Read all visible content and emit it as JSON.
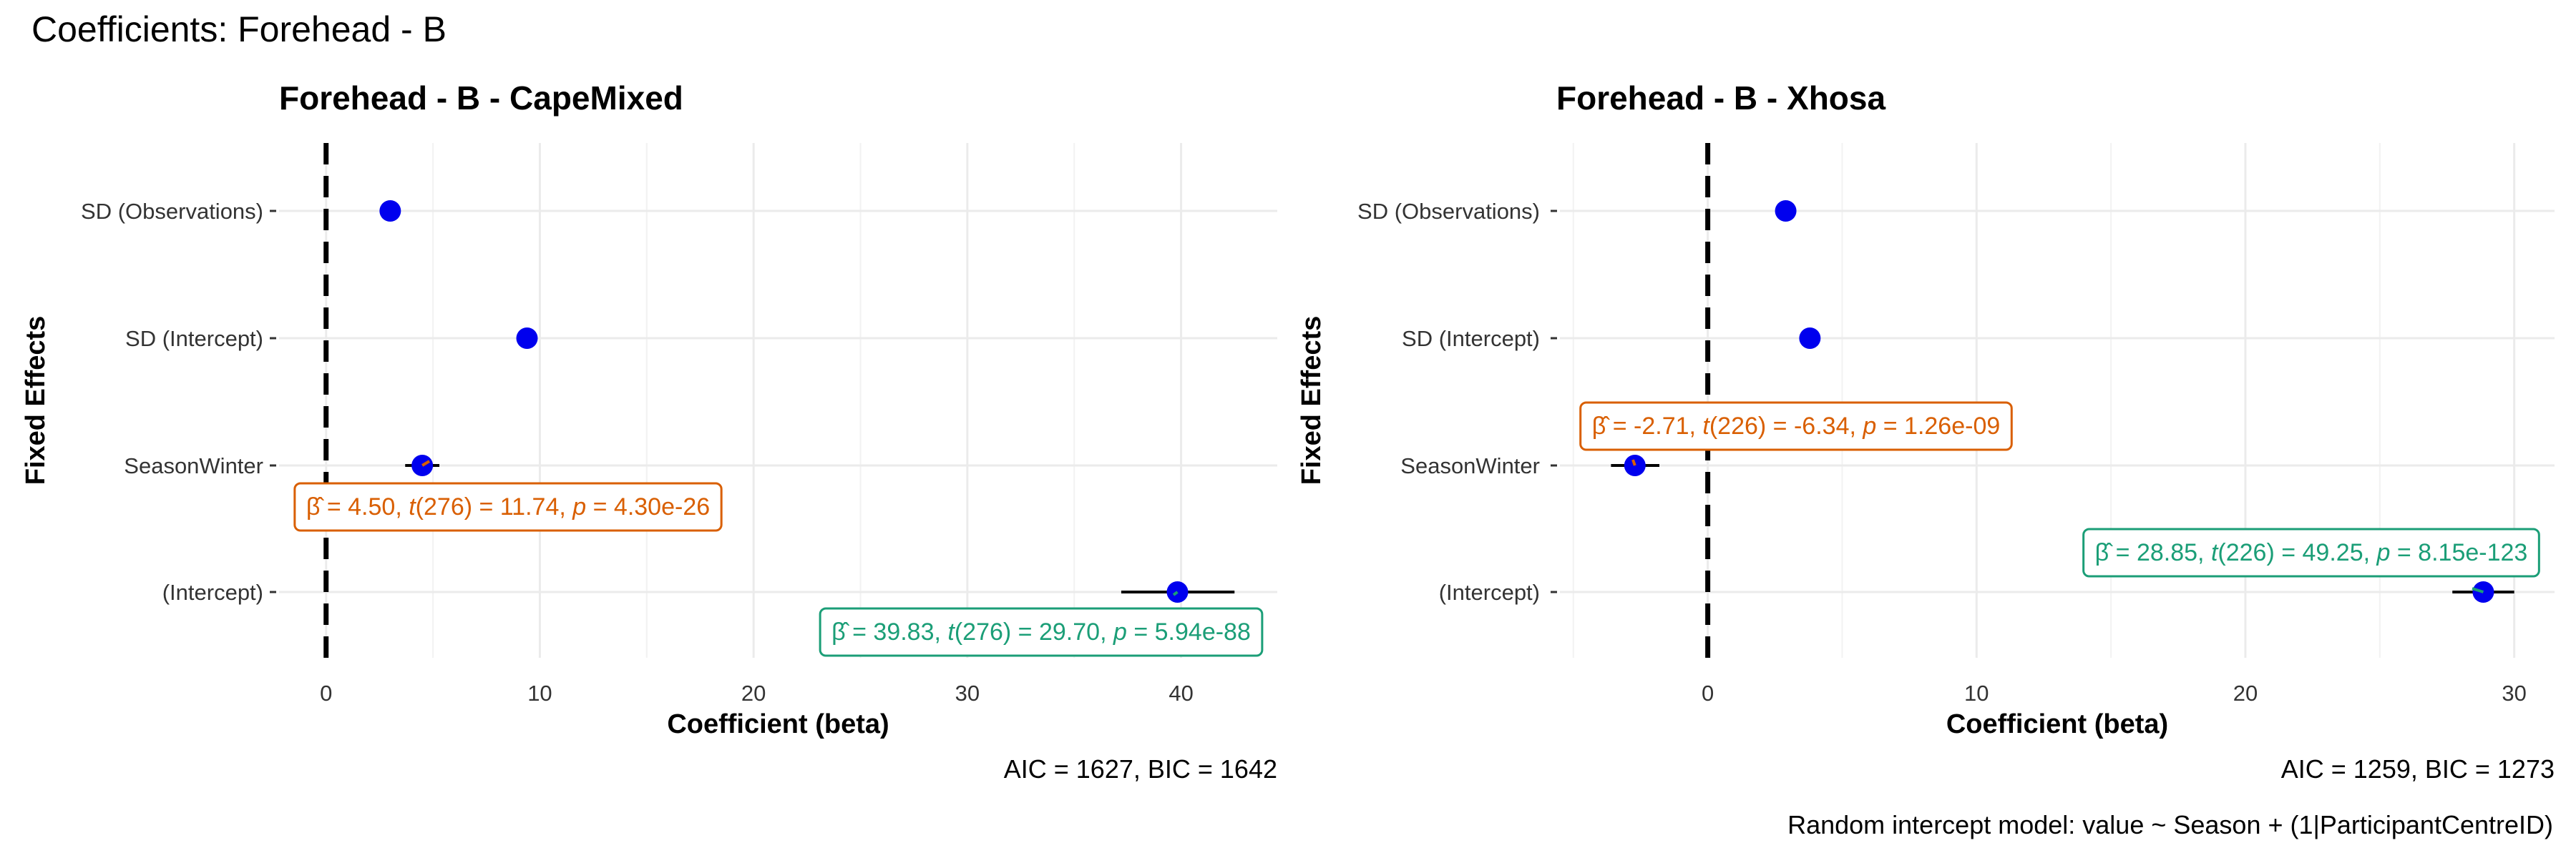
{
  "page": {
    "title": "Coefficients: Forehead - B",
    "caption": "Random intercept model: value ~ Season + (1|ParticipantCentreID)"
  },
  "chart_data": [
    {
      "type": "scatter",
      "title": "Forehead - B - CapeMixed",
      "xlabel": "Coefficient (beta)",
      "ylabel": "Fixed Effects",
      "xlim": [
        -2.2,
        44.5
      ],
      "xticks": [
        0,
        10,
        20,
        30,
        40
      ],
      "categories": [
        "SD (Observations)",
        "SD (Intercept)",
        "SeasonWinter",
        "(Intercept)"
      ],
      "estimates": [
        3.0,
        9.4,
        4.5,
        39.83
      ],
      "ci_low": [
        null,
        null,
        3.7,
        37.2
      ],
      "ci_high": [
        null,
        null,
        5.3,
        42.5
      ],
      "reference_line": 0,
      "grid": true,
      "stats": "AIC = 1627, BIC = 1642",
      "annotations": [
        {
          "category": "SeasonWinter",
          "beta": "4.50",
          "df": "276",
          "t": "11.74",
          "p": "4.30e-26",
          "color": "#d95f02"
        },
        {
          "category": "(Intercept)",
          "beta": "39.83",
          "df": "276",
          "t": "29.70",
          "p": "5.94e-88",
          "color": "#1b9e77"
        }
      ],
      "point_color": "#0000ee"
    },
    {
      "type": "scatter",
      "title": "Forehead - B - Xhosa",
      "xlabel": "Coefficient (beta)",
      "ylabel": "Fixed Effects",
      "xlim": [
        -5.5,
        31.5
      ],
      "xticks": [
        0,
        10,
        20,
        30
      ],
      "categories": [
        "SD (Observations)",
        "SD (Intercept)",
        "SeasonWinter",
        "(Intercept)"
      ],
      "estimates": [
        2.9,
        3.8,
        -2.71,
        28.85
      ],
      "ci_low": [
        null,
        null,
        -3.6,
        27.7
      ],
      "ci_high": [
        null,
        null,
        -1.8,
        30.0
      ],
      "reference_line": 0,
      "grid": true,
      "stats": "AIC = 1259, BIC = 1273",
      "annotations": [
        {
          "category": "SeasonWinter",
          "beta": "-2.71",
          "df": "226",
          "t": "-6.34",
          "p": "1.26e-09",
          "color": "#d95f02"
        },
        {
          "category": "(Intercept)",
          "beta": "28.85",
          "df": "226",
          "t": "49.25",
          "p": "8.15e-123",
          "color": "#1b9e77"
        }
      ],
      "point_color": "#0000ee"
    }
  ]
}
